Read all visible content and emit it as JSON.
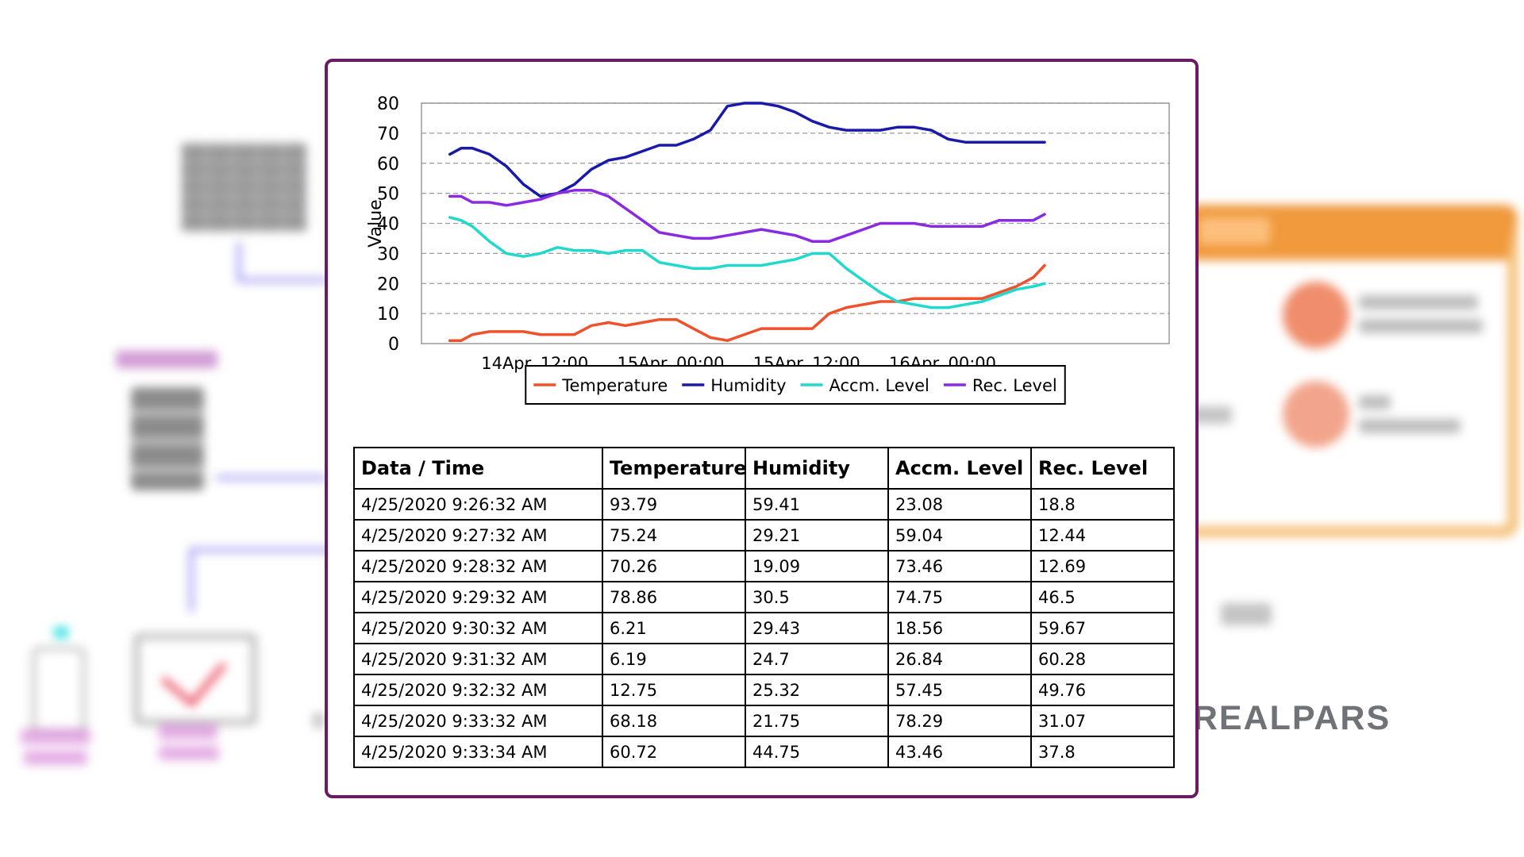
{
  "brand": {
    "logo_text": "REALPARS"
  },
  "chart_data": {
    "type": "line",
    "ylabel": "Value",
    "xlabel": "",
    "ylim": [
      0,
      80
    ],
    "yticks": [
      0,
      10,
      20,
      30,
      40,
      50,
      60,
      70,
      80
    ],
    "xlim": [
      "2020-04-14 02:00",
      "2020-04-16 20:00"
    ],
    "xticks": [
      {
        "x": "2020-04-14 12:00",
        "label": "14Apr. 12:00"
      },
      {
        "x": "2020-04-15 00:00",
        "label": "15Apr. 00:00"
      },
      {
        "x": "2020-04-15 12:00",
        "label": "15Apr. 12:00"
      },
      {
        "x": "2020-04-16 00:00",
        "label": "16Apr. 00:00"
      }
    ],
    "grid": "horizontal-dashed",
    "legend": "bottom-center",
    "x": [
      "2020-04-14 04:30",
      "2020-04-14 05:30",
      "2020-04-14 06:30",
      "2020-04-14 08:00",
      "2020-04-14 09:30",
      "2020-04-14 11:00",
      "2020-04-14 12:30",
      "2020-04-14 14:00",
      "2020-04-14 15:30",
      "2020-04-14 17:00",
      "2020-04-14 18:30",
      "2020-04-14 20:00",
      "2020-04-14 21:30",
      "2020-04-14 23:00",
      "2020-04-15 00:30",
      "2020-04-15 02:00",
      "2020-04-15 03:30",
      "2020-04-15 05:00",
      "2020-04-15 06:30",
      "2020-04-15 08:00",
      "2020-04-15 09:30",
      "2020-04-15 11:00",
      "2020-04-15 12:30",
      "2020-04-15 14:00",
      "2020-04-15 15:30",
      "2020-04-15 17:00",
      "2020-04-15 18:30",
      "2020-04-15 20:00",
      "2020-04-15 21:30",
      "2020-04-15 23:00",
      "2020-04-16 00:30",
      "2020-04-16 02:00",
      "2020-04-16 03:30",
      "2020-04-16 05:00",
      "2020-04-16 06:30",
      "2020-04-16 08:00",
      "2020-04-16 09:00"
    ],
    "series": [
      {
        "name": "Temperature",
        "color": "#f0502a",
        "values": [
          1,
          1,
          3,
          4,
          4,
          4,
          3,
          3,
          3,
          6,
          7,
          6,
          7,
          8,
          8,
          5,
          2,
          1,
          3,
          5,
          5,
          5,
          5,
          10,
          12,
          13,
          14,
          14,
          15,
          15,
          15,
          15,
          15,
          17,
          19,
          22,
          26
        ]
      },
      {
        "name": "Humidity",
        "color": "#1a1aa8",
        "values": [
          63,
          65,
          65,
          63,
          59,
          53,
          49,
          50,
          53,
          58,
          61,
          62,
          64,
          66,
          66,
          68,
          71,
          79,
          80,
          80,
          79,
          77,
          74,
          72,
          71,
          71,
          71,
          72,
          72,
          71,
          68,
          67,
          67,
          67,
          67,
          67,
          67
        ]
      },
      {
        "name": "Accm. Level",
        "color": "#20d9cc",
        "values": [
          42,
          41,
          39,
          34,
          30,
          29,
          30,
          32,
          31,
          31,
          30,
          31,
          31,
          27,
          26,
          25,
          25,
          26,
          26,
          26,
          27,
          28,
          30,
          30,
          25,
          21,
          17,
          14,
          13,
          12,
          12,
          13,
          14,
          16,
          18,
          19,
          20
        ]
      },
      {
        "name": "Rec. Level",
        "color": "#8a2be2",
        "values": [
          49,
          49,
          47,
          47,
          46,
          47,
          48,
          50,
          51,
          51,
          49,
          45,
          41,
          37,
          36,
          35,
          35,
          36,
          37,
          38,
          37,
          36,
          34,
          34,
          36,
          38,
          40,
          40,
          40,
          39,
          39,
          39,
          39,
          41,
          41,
          41,
          43
        ]
      }
    ]
  },
  "table": {
    "headers": [
      "Data / Time",
      "Temperature",
      "Humidity",
      "Accm. Level",
      "Rec. Level"
    ],
    "rows": [
      [
        "4/25/2020 9:26:32 AM",
        "93.79",
        "59.41",
        "23.08",
        "18.8"
      ],
      [
        "4/25/2020 9:27:32 AM",
        "75.24",
        "29.21",
        "59.04",
        "12.44"
      ],
      [
        "4/25/2020 9:28:32 AM",
        "70.26",
        "19.09",
        "73.46",
        "12.69"
      ],
      [
        "4/25/2020 9:29:32 AM",
        "78.86",
        "30.5",
        "74.75",
        "46.5"
      ],
      [
        "4/25/2020 9:30:32 AM",
        "6.21",
        "29.43",
        "18.56",
        "59.67"
      ],
      [
        "4/25/2020 9:31:32 AM",
        "6.19",
        "24.7",
        "26.84",
        "60.28"
      ],
      [
        "4/25/2020 9:32:32 AM",
        "12.75",
        "25.32",
        "57.45",
        "49.76"
      ],
      [
        "4/25/2020 9:33:32 AM",
        "68.18",
        "21.75",
        "78.29",
        "31.07"
      ],
      [
        "4/25/2020 9:33:34 AM",
        "60.72",
        "44.75",
        "43.46",
        "37.8"
      ]
    ]
  }
}
